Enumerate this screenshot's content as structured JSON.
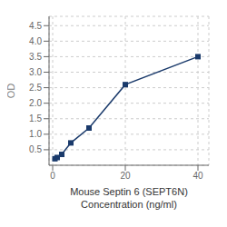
{
  "chart_data": {
    "type": "line",
    "xlabel": "Mouse Septin 6 (SEPT6N)\nConcentration (ng/ml)",
    "ylabel": "OD",
    "x": [
      0.625,
      1.25,
      2.5,
      5,
      10,
      20,
      40
    ],
    "values": [
      0.21,
      0.25,
      0.35,
      0.72,
      1.2,
      2.6,
      3.5
    ],
    "color": "#1a3a6b",
    "marker": "square",
    "xlim": [
      -1,
      43
    ],
    "ylim": [
      0,
      4.8
    ],
    "xticks": [
      0,
      20,
      40
    ],
    "yticks": [
      0.5,
      {
        "value": 1,
        "label": "1.0"
      },
      1.5,
      {
        "value": 2,
        "label": "2.0"
      },
      2.5,
      {
        "value": 3,
        "label": "3.0"
      },
      3.5,
      {
        "value": 4,
        "label": "4.0"
      },
      4.5
    ],
    "grid": true
  }
}
